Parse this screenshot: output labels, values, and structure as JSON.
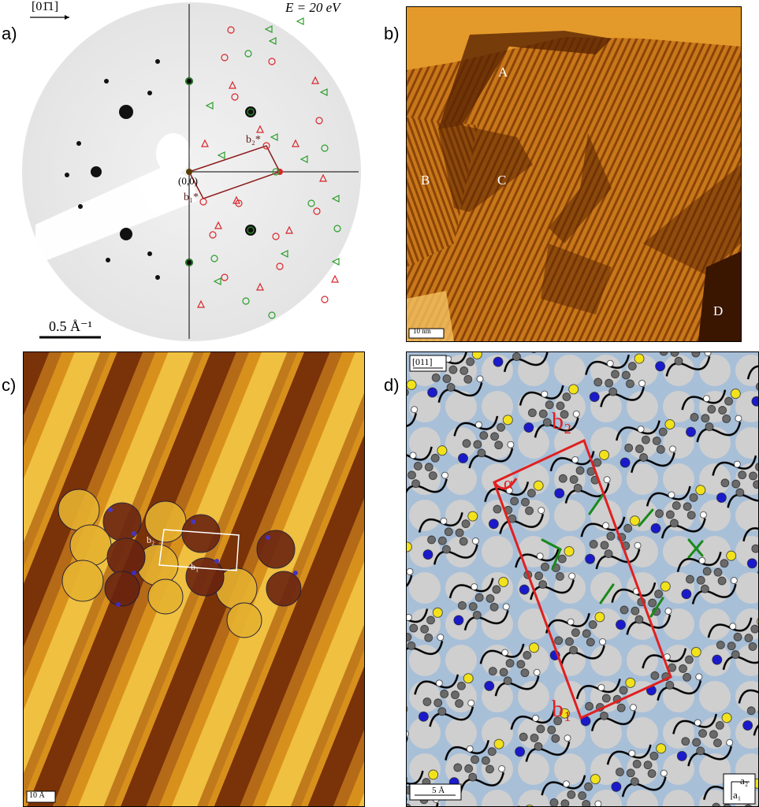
{
  "panels": {
    "a": {
      "label": "a)",
      "direction": "[01̄1]",
      "energy": "E = 20 eV",
      "origin": "(0,0)",
      "b1": "b₁*",
      "b2": "b₂*",
      "scale": "0.5 Å⁻¹",
      "colors": {
        "domain_red": "#d8262c",
        "domain_green": "#2a9d2a",
        "cell": "#8b1a1a"
      }
    },
    "b": {
      "label": "b)",
      "domains": [
        "A",
        "B",
        "C",
        "D"
      ],
      "scale": "10 nm"
    },
    "c": {
      "label": "c)",
      "b1": "b₁",
      "b2": "b₂",
      "scale": "10 Å"
    },
    "d": {
      "label": "d)",
      "direction": "[011]",
      "b1": "b₁",
      "b2": "b₂",
      "alpha": "α",
      "scale": "5 Å",
      "axes_a1": "a₁",
      "axes_a2": "a₂",
      "colors": {
        "cell": "#e02020",
        "bond": "#1a8a1a",
        "blue_atom": "#1a1acc",
        "yellow_atom": "#f2e21c",
        "grey_atom": "#707070"
      }
    }
  }
}
